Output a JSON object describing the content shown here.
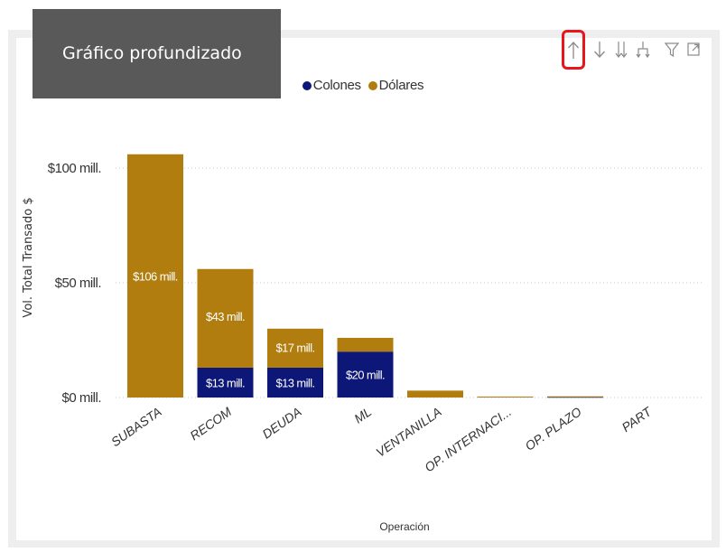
{
  "visual": {
    "title": "Gráfico  profundizado",
    "toolbar": [
      {
        "name": "drill-up",
        "label": "↑"
      },
      {
        "name": "drill-down",
        "label": "↓"
      },
      {
        "name": "next-level",
        "label": "⇊"
      },
      {
        "name": "expand-hierarchy",
        "label": "⑂"
      },
      {
        "name": "filter",
        "label": "▽"
      },
      {
        "name": "focus-mode",
        "label": "⤢"
      }
    ],
    "highlight_color": "#e8151b"
  },
  "chart_data": {
    "type": "bar",
    "stacked": true,
    "title": "",
    "xlabel": "Operación",
    "ylabel": "Vol. Total Transado $",
    "ylim": [
      0,
      110
    ],
    "yticks": [
      {
        "value": 0,
        "label": "$0 mill."
      },
      {
        "value": 50,
        "label": "$50 mill."
      },
      {
        "value": 100,
        "label": "$100 mill."
      }
    ],
    "grid": true,
    "legend_position": "top-center",
    "categories": [
      "SUBASTA",
      "RECOM",
      "DEUDA",
      "ML",
      "VENTANILLA",
      "OP. INTERNACI...",
      "OP. PLAZO",
      "PART"
    ],
    "series": [
      {
        "name": "Colones",
        "color": "#0d1777",
        "values": [
          0,
          13,
          13,
          20,
          0,
          0,
          0.3,
          0
        ],
        "labels": [
          "",
          "$13 mill.",
          "$13 mill.",
          "$20 mill.",
          "",
          "",
          "",
          ""
        ]
      },
      {
        "name": "Dólares",
        "color": "#b07d0e",
        "values": [
          106,
          43,
          17,
          6,
          3,
          0.4,
          0.2,
          0
        ],
        "labels": [
          "$106 mill.",
          "$43 mill.",
          "$17 mill.",
          "",
          "",
          "",
          "",
          ""
        ]
      }
    ]
  }
}
